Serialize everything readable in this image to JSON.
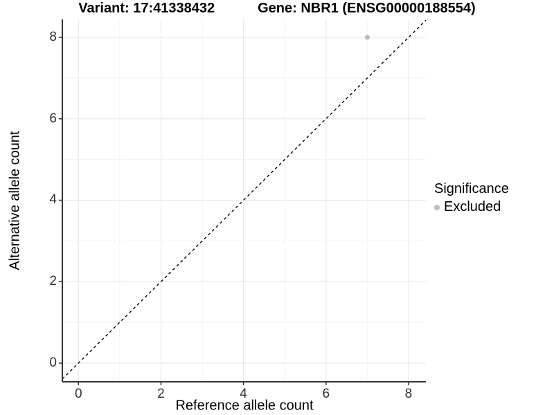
{
  "chart_data": {
    "type": "scatter",
    "title_left": "Variant: 17:41338432",
    "title_right": "Gene: NBR1 (ENSG00000188554)",
    "xlabel": "Reference allele count",
    "ylabel": "Alternative allele count",
    "xlim": [
      -0.39,
      8.42
    ],
    "ylim": [
      -0.459,
      8.442
    ],
    "xticks": [
      0,
      2,
      4,
      6,
      8
    ],
    "yticks": [
      0,
      2,
      4,
      6,
      8
    ],
    "xticks_minor": [
      1,
      3,
      5,
      7
    ],
    "yticks_minor": [
      1,
      3,
      5,
      7
    ],
    "identity_line": {
      "style": "dashed",
      "color": "#000000",
      "equation": "y = x"
    },
    "series": [
      {
        "name": "Excluded",
        "color": "#bdbdbd",
        "points": [
          {
            "x": 7,
            "y": 8
          }
        ]
      }
    ],
    "legend": {
      "title": "Significance",
      "position": "right",
      "items": [
        {
          "label": "Excluded",
          "color": "#bdbdbd"
        }
      ]
    },
    "colors": {
      "grid_major": "#e6e6e6",
      "grid_minor": "#f2f2f2",
      "axis": "#333333",
      "tick": "#333333",
      "background": "#ffffff"
    }
  }
}
